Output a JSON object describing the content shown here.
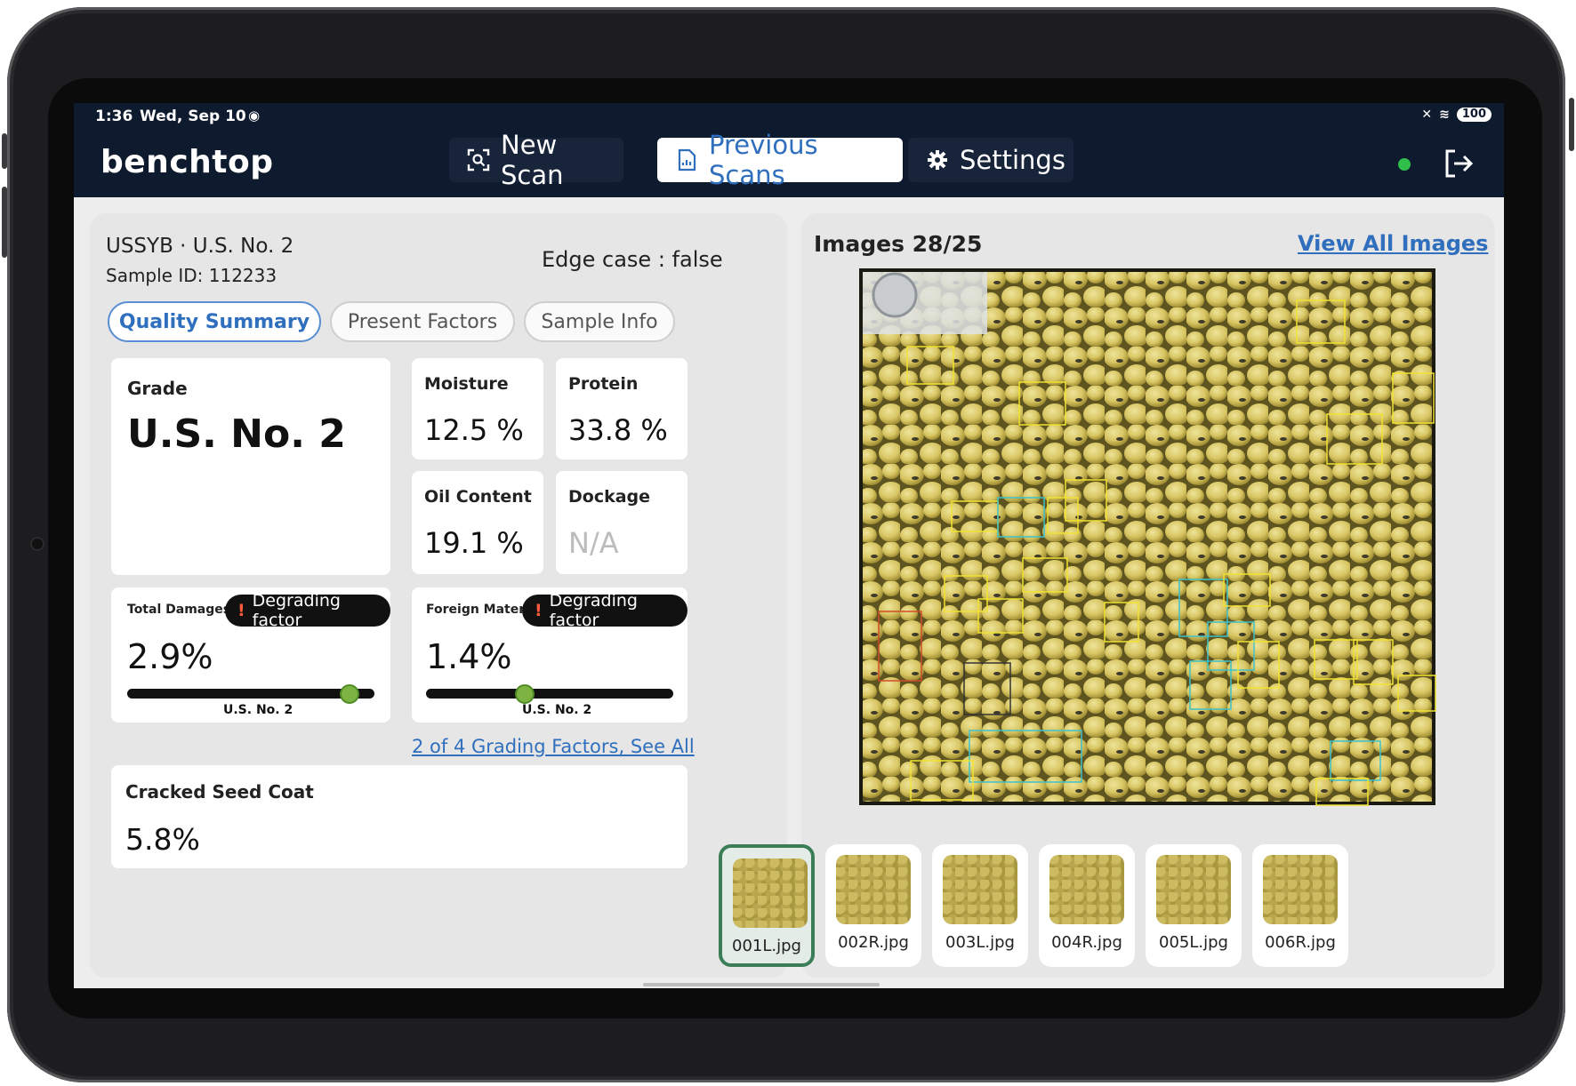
{
  "status_bar": {
    "time": "1:36",
    "date": "Wed, Sep 10",
    "battery": "100"
  },
  "nav": {
    "brand": "benchtop",
    "tabs": [
      {
        "label": "New Scan",
        "icon": "scan-icon",
        "active": false
      },
      {
        "label": "Previous Scans",
        "icon": "document-icon",
        "active": true
      },
      {
        "label": "Settings",
        "icon": "gear-icon",
        "active": false
      }
    ],
    "status_color": "#2fbf4a"
  },
  "sample": {
    "type_grade": "USSYB · U.S. No. 2",
    "sample_id": "Sample ID: 112233",
    "edge_case": "Edge case : false"
  },
  "subtabs": [
    "Quality Summary",
    "Present Factors",
    "Sample Info"
  ],
  "metrics": {
    "grade": {
      "label": "Grade",
      "value": "U.S. No. 2"
    },
    "moisture": {
      "label": "Moisture",
      "value": "12.5 %"
    },
    "protein": {
      "label": "Protein",
      "value": "33.8 %"
    },
    "oil": {
      "label": "Oil Content",
      "value": "19.1 %"
    },
    "dockage": {
      "label": "Dockage",
      "value": "N/A"
    }
  },
  "factors": [
    {
      "label": "Total Damages",
      "badge": "Degrading factor",
      "value": "2.9%",
      "scale_label": "U.S. No. 2",
      "slider_fraction": 0.9
    },
    {
      "label": "Foreign Mater...",
      "badge": "Degrading factor",
      "value": "1.4%",
      "scale_label": "U.S. No. 2",
      "slider_fraction": 0.4
    }
  ],
  "factors_link": "2 of 4 Grading Factors, See All",
  "cracked": {
    "label": "Cracked Seed Coat",
    "value": "5.8%"
  },
  "images": {
    "title": "Images 28/25",
    "view_all": "View All Images",
    "thumbnails": [
      "001L.jpg",
      "002R.jpg",
      "003L.jpg",
      "004R.jpg",
      "005L.jpg",
      "006R.jpg"
    ]
  }
}
